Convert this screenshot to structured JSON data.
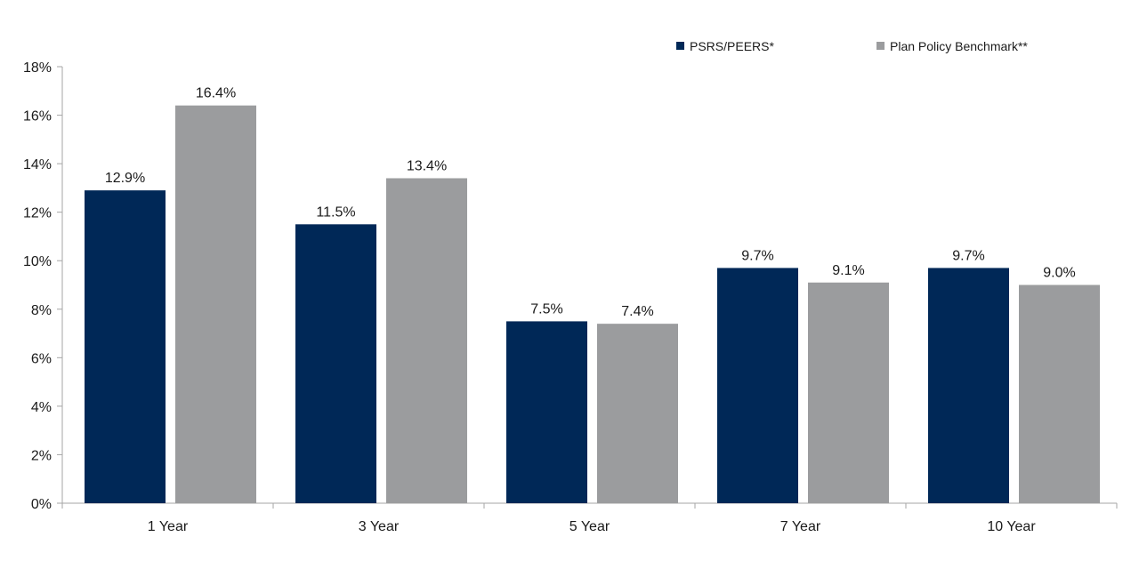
{
  "chart_data": {
    "type": "bar",
    "categories": [
      "1 Year",
      "3 Year",
      "5 Year",
      "7 Year",
      "10 Year"
    ],
    "series": [
      {
        "name": "PSRS/PEERS*",
        "color": "#002857",
        "values": [
          12.9,
          11.5,
          7.5,
          9.7,
          9.7
        ],
        "labels": [
          "12.9%",
          "11.5%",
          "7.5%",
          "9.7%",
          "9.7%"
        ]
      },
      {
        "name": "Plan Policy Benchmark**",
        "color": "#9b9c9e",
        "values": [
          16.4,
          13.4,
          7.4,
          9.1,
          9.0
        ],
        "labels": [
          "16.4%",
          "13.4%",
          "7.4%",
          "9.1%",
          "9.0%"
        ]
      }
    ],
    "title": "",
    "xlabel": "",
    "ylabel": "",
    "ylim": [
      0,
      18
    ],
    "yticks": [
      0,
      2,
      4,
      6,
      8,
      10,
      12,
      14,
      16,
      18
    ],
    "ytick_labels": [
      "0%",
      "2%",
      "4%",
      "6%",
      "8%",
      "10%",
      "12%",
      "14%",
      "16%",
      "18%"
    ],
    "grid": false,
    "legend_position": "top-right"
  }
}
